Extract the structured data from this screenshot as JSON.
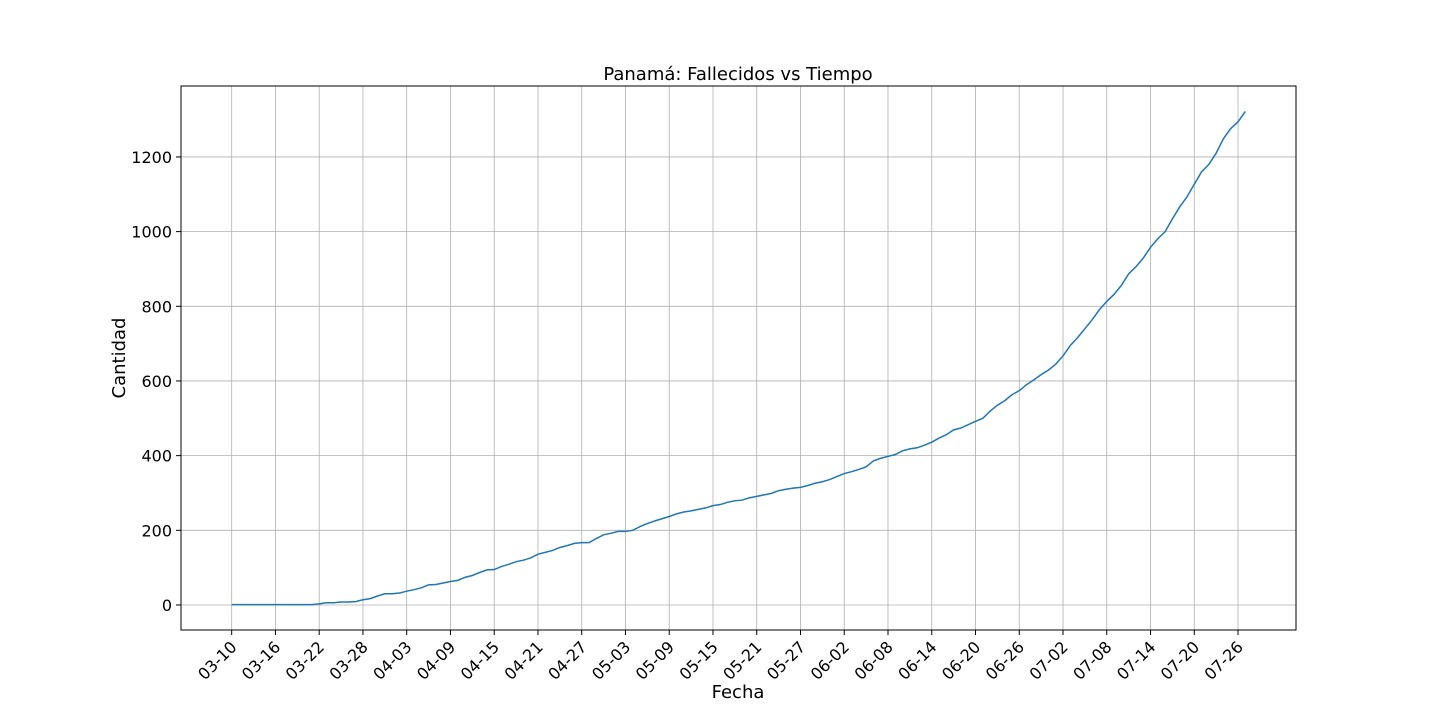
{
  "chart_data": {
    "type": "line",
    "title": "Panamá: Fallecidos vs Tiempo",
    "x_label": "Fecha",
    "y_label": "Cantidad",
    "x": [
      "03-10",
      "03-11",
      "03-12",
      "03-13",
      "03-14",
      "03-15",
      "03-16",
      "03-17",
      "03-18",
      "03-19",
      "03-20",
      "03-21",
      "03-22",
      "03-23",
      "03-24",
      "03-25",
      "03-26",
      "03-27",
      "03-28",
      "03-29",
      "03-30",
      "03-31",
      "04-01",
      "04-02",
      "04-03",
      "04-04",
      "04-05",
      "04-06",
      "04-07",
      "04-08",
      "04-09",
      "04-10",
      "04-11",
      "04-12",
      "04-13",
      "04-14",
      "04-15",
      "04-16",
      "04-17",
      "04-18",
      "04-19",
      "04-20",
      "04-21",
      "04-22",
      "04-23",
      "04-24",
      "04-25",
      "04-26",
      "04-27",
      "04-28",
      "04-29",
      "04-30",
      "05-01",
      "05-02",
      "05-03",
      "05-04",
      "05-05",
      "05-06",
      "05-07",
      "05-08",
      "05-09",
      "05-10",
      "05-11",
      "05-12",
      "05-13",
      "05-14",
      "05-15",
      "05-16",
      "05-17",
      "05-18",
      "05-19",
      "05-20",
      "05-21",
      "05-22",
      "05-23",
      "05-24",
      "05-25",
      "05-26",
      "05-27",
      "05-28",
      "05-29",
      "05-30",
      "05-31",
      "06-01",
      "06-02",
      "06-03",
      "06-04",
      "06-05",
      "06-06",
      "06-07",
      "06-08",
      "06-09",
      "06-10",
      "06-11",
      "06-12",
      "06-13",
      "06-14",
      "06-15",
      "06-16",
      "06-17",
      "06-18",
      "06-19",
      "06-20",
      "06-21",
      "06-22",
      "06-23",
      "06-24",
      "06-25",
      "06-26",
      "06-27",
      "06-28",
      "06-29",
      "06-30",
      "07-01",
      "07-02",
      "07-03",
      "07-04",
      "07-05",
      "07-06",
      "07-07",
      "07-08",
      "07-09",
      "07-10",
      "07-11",
      "07-12",
      "07-13",
      "07-14",
      "07-15",
      "07-16",
      "07-17",
      "07-18",
      "07-19",
      "07-20",
      "07-21",
      "07-22",
      "07-23",
      "07-24",
      "07-25",
      "07-26",
      "07-27"
    ],
    "values": [
      1,
      1,
      1,
      1,
      1,
      1,
      1,
      1,
      1,
      1,
      1,
      1,
      3,
      6,
      6,
      8,
      8,
      9,
      14,
      17,
      24,
      30,
      30,
      32,
      37,
      41,
      46,
      54,
      55,
      59,
      63,
      66,
      74,
      79,
      87,
      94,
      95,
      103,
      109,
      116,
      120,
      126,
      136,
      141,
      146,
      154,
      159,
      165,
      167,
      167,
      178,
      188,
      192,
      197,
      197,
      200,
      210,
      218,
      225,
      231,
      237,
      244,
      249,
      252,
      256,
      260,
      266,
      269,
      275,
      279,
      281,
      287,
      291,
      295,
      299,
      306,
      310,
      313,
      315,
      320,
      326,
      330,
      336,
      344,
      352,
      357,
      363,
      370,
      386,
      393,
      398,
      403,
      413,
      418,
      421,
      428,
      436,
      447,
      456,
      469,
      474,
      483,
      492,
      500,
      519,
      535,
      547,
      563,
      574,
      590,
      603,
      617,
      629,
      645,
      667,
      695,
      716,
      740,
      764,
      791,
      813,
      832,
      856,
      887,
      906,
      929,
      958,
      981,
      1000,
      1034,
      1066,
      1093,
      1127,
      1160,
      1180,
      1210,
      1249,
      1276,
      1294,
      1322
    ],
    "color": "#1f77b4",
    "ylim": [
      -67,
      1390
    ],
    "yticks": [
      0,
      200,
      400,
      600,
      800,
      1000,
      1200
    ],
    "xticks": [
      "03-10",
      "03-16",
      "03-22",
      "03-28",
      "04-03",
      "04-09",
      "04-15",
      "04-21",
      "04-27",
      "05-03",
      "05-09",
      "05-15",
      "05-21",
      "05-27",
      "06-02",
      "06-08",
      "06-14",
      "06-20",
      "06-26",
      "07-02",
      "07-08",
      "07-14",
      "07-20",
      "07-26"
    ],
    "grid": true
  }
}
